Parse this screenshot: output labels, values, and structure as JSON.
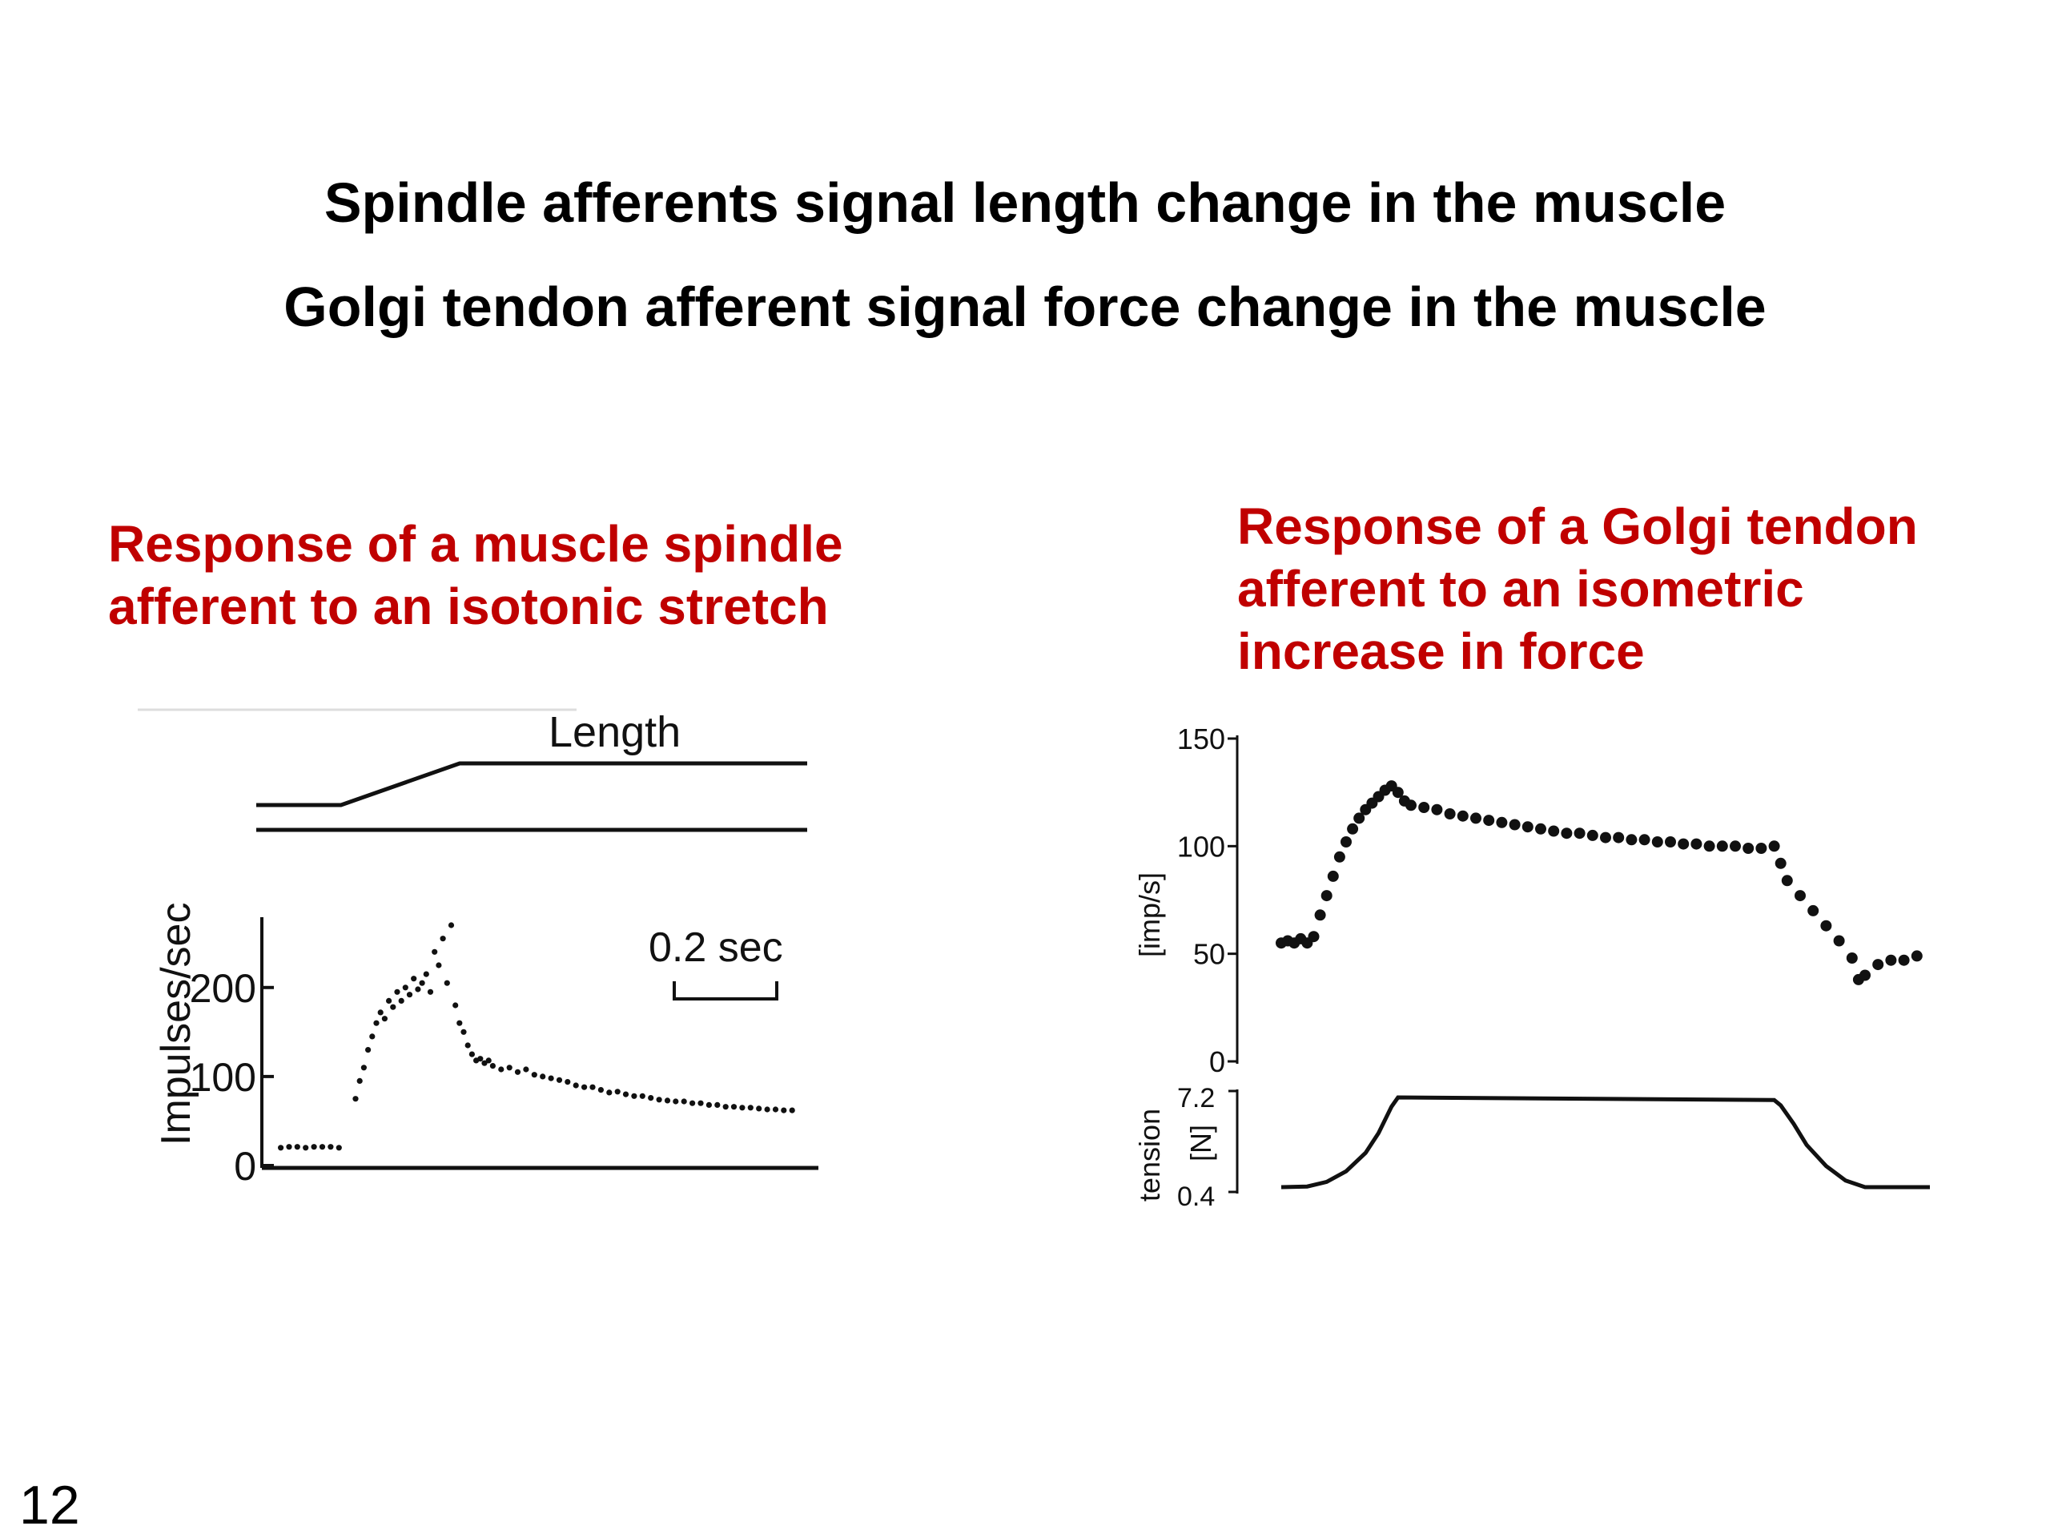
{
  "slide": {
    "headlines": [
      "Spindle afferents signal length change in the muscle",
      "Golgi tendon afferent signal force change in the muscle"
    ],
    "left_caption": [
      "Response of a muscle spindle",
      "afferent to an isotonic stretch"
    ],
    "right_caption": [
      "Response of a Golgi tendon",
      "afferent to an isometric",
      "increase in force"
    ],
    "page_number": "12",
    "caption_color": "#c00000"
  },
  "chart_data": [
    {
      "type": "scatter",
      "title": "",
      "length_trace_label": "Length",
      "ylabel": "Impulses/sec",
      "yticks": [
        "0",
        "100",
        "200"
      ],
      "ylim": [
        0,
        270
      ],
      "xlim": [
        0,
        1.3
      ],
      "scale_bar_label": "0.2 sec",
      "length_trace": {
        "x": [
          0,
          0.2,
          0.48,
          1.3
        ],
        "y": [
          0,
          0,
          1,
          1
        ]
      },
      "series": [
        {
          "x": [
            0.03,
            0.05,
            0.07,
            0.09,
            0.11,
            0.13,
            0.15,
            0.17,
            0.21,
            0.22,
            0.23,
            0.24,
            0.25,
            0.26,
            0.27,
            0.28,
            0.29,
            0.3,
            0.31,
            0.32,
            0.33,
            0.34,
            0.35,
            0.36,
            0.37,
            0.38,
            0.39,
            0.4,
            0.41,
            0.42,
            0.43,
            0.44,
            0.45,
            0.46,
            0.47,
            0.48,
            0.49,
            0.5,
            0.51,
            0.52,
            0.53,
            0.54,
            0.56,
            0.58,
            0.6,
            0.62,
            0.64,
            0.66,
            0.68,
            0.7,
            0.72,
            0.74,
            0.76,
            0.78,
            0.8,
            0.82,
            0.84,
            0.86,
            0.88,
            0.9,
            0.92,
            0.94,
            0.96,
            0.98,
            1.0,
            1.02,
            1.04,
            1.06,
            1.08,
            1.1,
            1.12,
            1.14,
            1.16,
            1.18,
            1.2,
            1.22,
            1.24,
            1.26
          ],
          "y": [
            20,
            21,
            21,
            20,
            21,
            21,
            21,
            20,
            75,
            95,
            110,
            130,
            145,
            160,
            172,
            165,
            185,
            178,
            195,
            185,
            200,
            192,
            210,
            198,
            205,
            215,
            195,
            240,
            225,
            255,
            205,
            270,
            180,
            160,
            150,
            135,
            125,
            118,
            120,
            115,
            118,
            112,
            108,
            110,
            105,
            108,
            102,
            100,
            98,
            96,
            94,
            90,
            88,
            88,
            85,
            82,
            83,
            80,
            78,
            78,
            76,
            74,
            73,
            72,
            72,
            70,
            70,
            68,
            68,
            66,
            66,
            65,
            65,
            64,
            63,
            63,
            62,
            62
          ]
        }
      ]
    },
    {
      "type": "scatter",
      "title": "",
      "ylabel": "[imp/s]",
      "yticks": [
        "0",
        "50",
        "100",
        "150"
      ],
      "ylim": [
        0,
        150
      ],
      "tension_label": "tension",
      "tension_unit": "[N]",
      "tension_ticks": [
        "0.4",
        "7.2"
      ],
      "xlim": [
        0,
        5
      ],
      "series": [
        {
          "name": "",
          "x": [
            0.0,
            0.05,
            0.1,
            0.15,
            0.2,
            0.25,
            0.3,
            0.35,
            0.4,
            0.45,
            0.5,
            0.55,
            0.6,
            0.65,
            0.7,
            0.75,
            0.8,
            0.85,
            0.9,
            0.95,
            1.0,
            1.1,
            1.2,
            1.3,
            1.4,
            1.5,
            1.6,
            1.7,
            1.8,
            1.9,
            2.0,
            2.1,
            2.2,
            2.3,
            2.4,
            2.5,
            2.6,
            2.7,
            2.8,
            2.9,
            3.0,
            3.1,
            3.2,
            3.3,
            3.4,
            3.5,
            3.6,
            3.7,
            3.8,
            3.85,
            3.9,
            4.0,
            4.1,
            4.2,
            4.3,
            4.4,
            4.45,
            4.5,
            4.6,
            4.7,
            4.8,
            4.9
          ],
          "y": [
            55,
            56,
            55,
            57,
            55,
            58,
            68,
            77,
            86,
            95,
            102,
            108,
            113,
            117,
            120,
            123,
            126,
            128,
            125,
            121,
            119,
            118,
            117,
            115,
            114,
            113,
            112,
            111,
            110,
            109,
            108,
            107,
            106,
            106,
            105,
            104,
            104,
            103,
            103,
            102,
            102,
            101,
            101,
            100,
            100,
            100,
            99,
            99,
            100,
            92,
            84,
            77,
            70,
            63,
            56,
            48,
            38,
            40,
            45,
            47,
            47,
            49
          ]
        }
      ],
      "tension_trace": {
        "x": [
          0.0,
          0.2,
          0.35,
          0.5,
          0.65,
          0.75,
          0.85,
          0.9,
          3.8,
          3.85,
          3.95,
          4.05,
          4.2,
          4.35,
          4.5,
          5.0
        ],
        "y": [
          0.4,
          0.45,
          0.8,
          1.6,
          3.0,
          4.5,
          6.5,
          7.2,
          7.0,
          6.6,
          5.2,
          3.6,
          2.0,
          0.9,
          0.4,
          0.4
        ]
      }
    }
  ]
}
